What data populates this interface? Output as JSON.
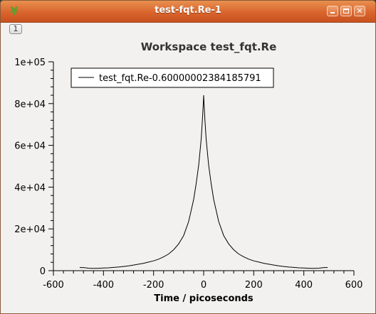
{
  "window": {
    "title": "test-fqt.Re-1",
    "tab_label": "1",
    "icon": "mantid-app-icon"
  },
  "chart_data": {
    "type": "line",
    "title": "Workspace test_fqt.Re",
    "xlabel": "Time / picoseconds",
    "ylabel": "",
    "xlim": [
      -600,
      600
    ],
    "ylim": [
      0,
      100000
    ],
    "xticks": [
      -600,
      -400,
      -200,
      0,
      200,
      400,
      600
    ],
    "xtick_labels": [
      "-600",
      "-400",
      "-200",
      "0",
      "200",
      "400",
      "600"
    ],
    "yticks": [
      0,
      20000,
      40000,
      60000,
      80000,
      100000
    ],
    "ytick_labels": [
      "0",
      "2e+04",
      "4e+04",
      "6e+04",
      "8e+04",
      "1e+05"
    ],
    "grid": false,
    "legend_position": "top-left",
    "series": [
      {
        "name": "test_fqt.Re-0.60000002384185791",
        "color": "#000000",
        "x": [
          -495,
          -480,
          -460,
          -440,
          -420,
          -400,
          -380,
          -360,
          -340,
          -320,
          -300,
          -280,
          -260,
          -240,
          -220,
          -200,
          -180,
          -160,
          -140,
          -120,
          -100,
          -80,
          -60,
          -40,
          -30,
          -20,
          -15,
          -10,
          -5,
          -2,
          0,
          2,
          5,
          10,
          15,
          20,
          30,
          40,
          60,
          80,
          100,
          120,
          140,
          160,
          180,
          200,
          220,
          240,
          260,
          280,
          300,
          320,
          340,
          360,
          380,
          400,
          420,
          440,
          460,
          480,
          495
        ],
        "y": [
          1500,
          1500,
          1200,
          1100,
          1150,
          1250,
          1350,
          1550,
          1750,
          2000,
          2300,
          2700,
          3100,
          3550,
          4100,
          4700,
          5500,
          6600,
          8000,
          10000,
          12800,
          16800,
          23500,
          34000,
          41500,
          50500,
          56500,
          63000,
          72000,
          79000,
          84000,
          79000,
          72000,
          63000,
          56500,
          50500,
          41500,
          34000,
          23500,
          16800,
          12800,
          10000,
          8000,
          6600,
          5500,
          4700,
          4100,
          3550,
          3100,
          2700,
          2300,
          2000,
          1750,
          1550,
          1350,
          1250,
          1150,
          1100,
          1200,
          1500,
          1500
        ]
      }
    ]
  }
}
